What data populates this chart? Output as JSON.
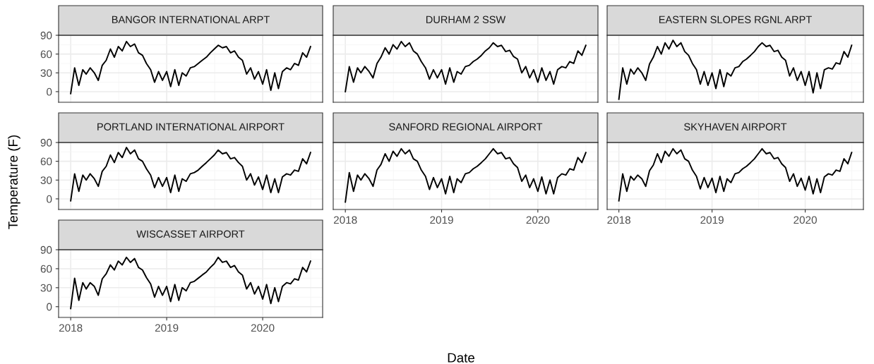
{
  "chart_data": [
    {
      "type": "line",
      "title": "BANGOR INTERNATIONAL ARPT",
      "tick_labels": "y",
      "grid": true,
      "xlim": [
        "2017-11-16",
        "2020-08-16"
      ],
      "ylim": [
        -17,
        90
      ],
      "xticks": [
        {
          "value": "2018",
          "label": null
        },
        {
          "value": "2019",
          "label": null
        },
        {
          "value": "2020",
          "label": null
        }
      ],
      "yticks": [
        0,
        30,
        60,
        90
      ],
      "x": [
        "2018-01-01",
        "2018-01-16",
        "2018-02-01",
        "2018-02-16",
        "2018-03-01",
        "2018-03-16",
        "2018-04-01",
        "2018-04-16",
        "2018-05-01",
        "2018-05-16",
        "2018-06-01",
        "2018-06-16",
        "2018-07-01",
        "2018-07-16",
        "2018-08-01",
        "2018-08-16",
        "2018-09-01",
        "2018-09-16",
        "2018-10-01",
        "2018-10-16",
        "2018-11-01",
        "2018-11-16",
        "2018-12-01",
        "2018-12-16",
        "2019-01-01",
        "2019-01-16",
        "2019-02-01",
        "2019-02-16",
        "2019-03-01",
        "2019-03-16",
        "2019-04-01",
        "2019-04-16",
        "2019-05-01",
        "2019-05-16",
        "2019-06-01",
        "2019-06-16",
        "2019-07-01",
        "2019-07-16",
        "2019-08-01",
        "2019-08-16",
        "2019-09-01",
        "2019-09-16",
        "2019-10-01",
        "2019-10-16",
        "2019-11-01",
        "2019-11-16",
        "2019-12-01",
        "2019-12-16",
        "2020-01-01",
        "2020-01-16",
        "2020-02-01",
        "2020-02-16",
        "2020-03-01",
        "2020-03-16",
        "2020-04-01",
        "2020-04-16",
        "2020-05-01",
        "2020-05-16",
        "2020-06-01",
        "2020-06-16",
        "2020-07-01"
      ],
      "series": [
        {
          "color": "#000000",
          "values": [
            -3,
            38,
            10,
            35,
            28,
            38,
            30,
            18,
            42,
            50,
            68,
            55,
            72,
            65,
            80,
            72,
            76,
            62,
            58,
            45,
            35,
            15,
            32,
            18,
            32,
            8,
            35,
            10,
            30,
            25,
            38,
            40,
            45,
            50,
            55,
            62,
            68,
            74,
            70,
            72,
            62,
            65,
            55,
            50,
            28,
            38,
            20,
            32,
            12,
            35,
            2,
            30,
            5,
            32,
            38,
            35,
            45,
            42,
            62,
            55,
            72
          ]
        }
      ]
    },
    {
      "type": "line",
      "title": "DURHAM 2 SSW",
      "tick_labels": false,
      "grid": true,
      "xlim": [
        "2017-11-16",
        "2020-08-16"
      ],
      "ylim": [
        -17,
        90
      ],
      "xticks": [
        {
          "value": "2018",
          "label": null
        },
        {
          "value": "2019",
          "label": null
        },
        {
          "value": "2020",
          "label": null
        }
      ],
      "yticks": [
        0,
        30,
        60,
        90
      ],
      "x": [
        "2018-01-01",
        "2018-01-16",
        "2018-02-01",
        "2018-02-16",
        "2018-03-01",
        "2018-03-16",
        "2018-04-01",
        "2018-04-16",
        "2018-05-01",
        "2018-05-16",
        "2018-06-01",
        "2018-06-16",
        "2018-07-01",
        "2018-07-16",
        "2018-08-01",
        "2018-08-16",
        "2018-09-01",
        "2018-09-16",
        "2018-10-01",
        "2018-10-16",
        "2018-11-01",
        "2018-11-16",
        "2018-12-01",
        "2018-12-16",
        "2019-01-01",
        "2019-01-16",
        "2019-02-01",
        "2019-02-16",
        "2019-03-01",
        "2019-03-16",
        "2019-04-01",
        "2019-04-16",
        "2019-05-01",
        "2019-05-16",
        "2019-06-01",
        "2019-06-16",
        "2019-07-01",
        "2019-07-16",
        "2019-08-01",
        "2019-08-16",
        "2019-09-01",
        "2019-09-16",
        "2019-10-01",
        "2019-10-16",
        "2019-11-01",
        "2019-11-16",
        "2019-12-01",
        "2019-12-16",
        "2020-01-01",
        "2020-01-16",
        "2020-02-01",
        "2020-02-16",
        "2020-03-01",
        "2020-03-16",
        "2020-04-01",
        "2020-04-16",
        "2020-05-01",
        "2020-05-16",
        "2020-06-01",
        "2020-06-16",
        "2020-07-01"
      ],
      "series": [
        {
          "color": "#000000",
          "values": [
            0,
            40,
            15,
            38,
            30,
            40,
            32,
            22,
            45,
            55,
            70,
            60,
            75,
            68,
            80,
            72,
            78,
            65,
            60,
            48,
            38,
            20,
            35,
            22,
            35,
            12,
            38,
            15,
            32,
            28,
            40,
            42,
            48,
            52,
            58,
            65,
            70,
            78,
            72,
            74,
            64,
            66,
            56,
            52,
            30,
            40,
            22,
            35,
            15,
            38,
            18,
            32,
            12,
            35,
            40,
            38,
            48,
            45,
            65,
            58,
            74
          ]
        }
      ]
    },
    {
      "type": "line",
      "title": "EASTERN SLOPES RGNL ARPT",
      "tick_labels": false,
      "grid": true,
      "xlim": [
        "2017-11-16",
        "2020-08-16"
      ],
      "ylim": [
        -17,
        90
      ],
      "xticks": [
        {
          "value": "2018",
          "label": null
        },
        {
          "value": "2019",
          "label": null
        },
        {
          "value": "2020",
          "label": null
        }
      ],
      "yticks": [
        0,
        30,
        60,
        90
      ],
      "x": [
        "2018-01-01",
        "2018-01-16",
        "2018-02-01",
        "2018-02-16",
        "2018-03-01",
        "2018-03-16",
        "2018-04-01",
        "2018-04-16",
        "2018-05-01",
        "2018-05-16",
        "2018-06-01",
        "2018-06-16",
        "2018-07-01",
        "2018-07-16",
        "2018-08-01",
        "2018-08-16",
        "2018-09-01",
        "2018-09-16",
        "2018-10-01",
        "2018-10-16",
        "2018-11-01",
        "2018-11-16",
        "2018-12-01",
        "2018-12-16",
        "2019-01-01",
        "2019-01-16",
        "2019-02-01",
        "2019-02-16",
        "2019-03-01",
        "2019-03-16",
        "2019-04-01",
        "2019-04-16",
        "2019-05-01",
        "2019-05-16",
        "2019-06-01",
        "2019-06-16",
        "2019-07-01",
        "2019-07-16",
        "2019-08-01",
        "2019-08-16",
        "2019-09-01",
        "2019-09-16",
        "2019-10-01",
        "2019-10-16",
        "2019-11-01",
        "2019-11-16",
        "2019-12-01",
        "2019-12-16",
        "2020-01-01",
        "2020-01-16",
        "2020-02-01",
        "2020-02-16",
        "2020-03-01",
        "2020-03-16",
        "2020-04-01",
        "2020-04-16",
        "2020-05-01",
        "2020-05-16",
        "2020-06-01",
        "2020-06-16",
        "2020-07-01"
      ],
      "series": [
        {
          "color": "#000000",
          "values": [
            -12,
            38,
            12,
            36,
            28,
            38,
            30,
            18,
            44,
            55,
            72,
            60,
            78,
            68,
            82,
            72,
            78,
            64,
            58,
            45,
            35,
            12,
            32,
            10,
            30,
            5,
            35,
            8,
            30,
            25,
            38,
            40,
            48,
            52,
            58,
            64,
            72,
            78,
            72,
            74,
            64,
            66,
            55,
            50,
            25,
            38,
            18,
            32,
            10,
            32,
            -2,
            30,
            5,
            35,
            38,
            36,
            46,
            44,
            64,
            55,
            74
          ]
        }
      ]
    },
    {
      "type": "line",
      "title": "PORTLAND INTERNATIONAL AIRPORT",
      "ylabel": "Temperature (F)",
      "tick_labels": "y",
      "grid": true,
      "xlim": [
        "2017-11-16",
        "2020-08-16"
      ],
      "ylim": [
        -17,
        90
      ],
      "xticks": [
        {
          "value": "2018",
          "label": null
        },
        {
          "value": "2019",
          "label": null
        },
        {
          "value": "2020",
          "label": null
        }
      ],
      "yticks": [
        0,
        30,
        60,
        90
      ],
      "x": [
        "2018-01-01",
        "2018-01-16",
        "2018-02-01",
        "2018-02-16",
        "2018-03-01",
        "2018-03-16",
        "2018-04-01",
        "2018-04-16",
        "2018-05-01",
        "2018-05-16",
        "2018-06-01",
        "2018-06-16",
        "2018-07-01",
        "2018-07-16",
        "2018-08-01",
        "2018-08-16",
        "2018-09-01",
        "2018-09-16",
        "2018-10-01",
        "2018-10-16",
        "2018-11-01",
        "2018-11-16",
        "2018-12-01",
        "2018-12-16",
        "2019-01-01",
        "2019-01-16",
        "2019-02-01",
        "2019-02-16",
        "2019-03-01",
        "2019-03-16",
        "2019-04-01",
        "2019-04-16",
        "2019-05-01",
        "2019-05-16",
        "2019-06-01",
        "2019-06-16",
        "2019-07-01",
        "2019-07-16",
        "2019-08-01",
        "2019-08-16",
        "2019-09-01",
        "2019-09-16",
        "2019-10-01",
        "2019-10-16",
        "2019-11-01",
        "2019-11-16",
        "2019-12-01",
        "2019-12-16",
        "2020-01-01",
        "2020-01-16",
        "2020-02-01",
        "2020-02-16",
        "2020-03-01",
        "2020-03-16",
        "2020-04-01",
        "2020-04-16",
        "2020-05-01",
        "2020-05-16",
        "2020-06-01",
        "2020-06-16",
        "2020-07-01"
      ],
      "series": [
        {
          "color": "#000000",
          "values": [
            -3,
            40,
            12,
            38,
            30,
            40,
            32,
            20,
            44,
            52,
            70,
            58,
            74,
            66,
            82,
            72,
            78,
            64,
            60,
            48,
            38,
            18,
            34,
            20,
            34,
            10,
            38,
            12,
            32,
            28,
            40,
            42,
            46,
            52,
            58,
            64,
            70,
            78,
            72,
            74,
            64,
            66,
            58,
            52,
            30,
            40,
            22,
            35,
            15,
            38,
            10,
            32,
            10,
            35,
            40,
            38,
            46,
            44,
            64,
            56,
            74
          ]
        }
      ]
    },
    {
      "type": "line",
      "title": "SANFORD REGIONAL AIRPORT",
      "xlabel": "Date",
      "tick_labels": "x",
      "grid": true,
      "xlim": [
        "2017-11-16",
        "2020-08-16"
      ],
      "ylim": [
        -17,
        90
      ],
      "xticks": [
        {
          "value": "2018",
          "label": "2018"
        },
        {
          "value": "2019",
          "label": "2019"
        },
        {
          "value": "2020",
          "label": "2020"
        }
      ],
      "yticks": [
        0,
        30,
        60,
        90
      ],
      "x": [
        "2018-01-01",
        "2018-01-16",
        "2018-02-01",
        "2018-02-16",
        "2018-03-01",
        "2018-03-16",
        "2018-04-01",
        "2018-04-16",
        "2018-05-01",
        "2018-05-16",
        "2018-06-01",
        "2018-06-16",
        "2018-07-01",
        "2018-07-16",
        "2018-08-01",
        "2018-08-16",
        "2018-09-01",
        "2018-09-16",
        "2018-10-01",
        "2018-10-16",
        "2018-11-01",
        "2018-11-16",
        "2018-12-01",
        "2018-12-16",
        "2019-01-01",
        "2019-01-16",
        "2019-02-01",
        "2019-02-16",
        "2019-03-01",
        "2019-03-16",
        "2019-04-01",
        "2019-04-16",
        "2019-05-01",
        "2019-05-16",
        "2019-06-01",
        "2019-06-16",
        "2019-07-01",
        "2019-07-16",
        "2019-08-01",
        "2019-08-16",
        "2019-09-01",
        "2019-09-16",
        "2019-10-01",
        "2019-10-16",
        "2019-11-01",
        "2019-11-16",
        "2019-12-01",
        "2019-12-16",
        "2020-01-01",
        "2020-01-16",
        "2020-02-01",
        "2020-02-16",
        "2020-03-01",
        "2020-03-16",
        "2020-04-01",
        "2020-04-16",
        "2020-05-01",
        "2020-05-16",
        "2020-06-01",
        "2020-06-16",
        "2020-07-01"
      ],
      "series": [
        {
          "color": "#000000",
          "values": [
            -5,
            42,
            12,
            38,
            30,
            40,
            32,
            20,
            46,
            55,
            72,
            60,
            76,
            68,
            80,
            72,
            78,
            64,
            60,
            46,
            36,
            15,
            34,
            18,
            32,
            8,
            36,
            10,
            32,
            26,
            40,
            42,
            48,
            52,
            58,
            64,
            72,
            80,
            72,
            74,
            64,
            66,
            56,
            50,
            28,
            38,
            18,
            32,
            12,
            35,
            8,
            30,
            8,
            34,
            40,
            38,
            48,
            46,
            66,
            58,
            74
          ]
        }
      ]
    },
    {
      "type": "line",
      "title": "SKYHAVEN AIRPORT",
      "tick_labels": "x",
      "grid": true,
      "xlim": [
        "2017-11-16",
        "2020-08-16"
      ],
      "ylim": [
        -17,
        90
      ],
      "xticks": [
        {
          "value": "2018",
          "label": "2018"
        },
        {
          "value": "2019",
          "label": "2019"
        },
        {
          "value": "2020",
          "label": "2020"
        }
      ],
      "yticks": [
        0,
        30,
        60,
        90
      ],
      "x": [
        "2018-01-01",
        "2018-01-16",
        "2018-02-01",
        "2018-02-16",
        "2018-03-01",
        "2018-03-16",
        "2018-04-01",
        "2018-04-16",
        "2018-05-01",
        "2018-05-16",
        "2018-06-01",
        "2018-06-16",
        "2018-07-01",
        "2018-07-16",
        "2018-08-01",
        "2018-08-16",
        "2018-09-01",
        "2018-09-16",
        "2018-10-01",
        "2018-10-16",
        "2018-11-01",
        "2018-11-16",
        "2018-12-01",
        "2018-12-16",
        "2019-01-01",
        "2019-01-16",
        "2019-02-01",
        "2019-02-16",
        "2019-03-01",
        "2019-03-16",
        "2019-04-01",
        "2019-04-16",
        "2019-05-01",
        "2019-05-16",
        "2019-06-01",
        "2019-06-16",
        "2019-07-01",
        "2019-07-16",
        "2019-08-01",
        "2019-08-16",
        "2019-09-01",
        "2019-09-16",
        "2019-10-01",
        "2019-10-16",
        "2019-11-01",
        "2019-11-16",
        "2019-12-01",
        "2019-12-16",
        "2020-01-01",
        "2020-01-16",
        "2020-02-01",
        "2020-02-16",
        "2020-03-01",
        "2020-03-16",
        "2020-04-01",
        "2020-04-16",
        "2020-05-01",
        "2020-05-16",
        "2020-06-01",
        "2020-06-16",
        "2020-07-01"
      ],
      "series": [
        {
          "color": "#000000",
          "values": [
            -3,
            40,
            12,
            36,
            30,
            38,
            32,
            20,
            45,
            54,
            72,
            58,
            76,
            68,
            80,
            72,
            78,
            64,
            60,
            46,
            36,
            16,
            34,
            18,
            33,
            10,
            36,
            12,
            32,
            26,
            40,
            42,
            48,
            52,
            58,
            64,
            72,
            80,
            72,
            74,
            64,
            66,
            56,
            50,
            28,
            40,
            20,
            33,
            14,
            36,
            8,
            32,
            10,
            35,
            40,
            38,
            46,
            44,
            64,
            56,
            74
          ]
        }
      ]
    },
    {
      "type": "line",
      "title": "WISCASSET AIRPORT",
      "grid": true,
      "xlim": [
        "2017-11-16",
        "2020-08-16"
      ],
      "ylim": [
        -17,
        90
      ],
      "xticks": [
        {
          "value": "2018",
          "label": "2018"
        },
        {
          "value": "2019",
          "label": "2019"
        },
        {
          "value": "2020",
          "label": "2020"
        }
      ],
      "yticks": [
        0,
        30,
        60,
        90
      ],
      "x": [
        "2018-01-01",
        "2018-01-16",
        "2018-02-01",
        "2018-02-16",
        "2018-03-01",
        "2018-03-16",
        "2018-04-01",
        "2018-04-16",
        "2018-05-01",
        "2018-05-16",
        "2018-06-01",
        "2018-06-16",
        "2018-07-01",
        "2018-07-16",
        "2018-08-01",
        "2018-08-16",
        "2018-09-01",
        "2018-09-16",
        "2018-10-01",
        "2018-10-16",
        "2018-11-01",
        "2018-11-16",
        "2018-12-01",
        "2018-12-16",
        "2019-01-01",
        "2019-01-16",
        "2019-02-01",
        "2019-02-16",
        "2019-03-01",
        "2019-03-16",
        "2019-04-01",
        "2019-04-16",
        "2019-05-01",
        "2019-05-16",
        "2019-06-01",
        "2019-06-16",
        "2019-07-01",
        "2019-07-16",
        "2019-08-01",
        "2019-08-16",
        "2019-09-01",
        "2019-09-16",
        "2019-10-01",
        "2019-10-16",
        "2019-11-01",
        "2019-11-16",
        "2019-12-01",
        "2019-12-16",
        "2020-01-01",
        "2020-01-16",
        "2020-02-01",
        "2020-02-16",
        "2020-03-01",
        "2020-03-16",
        "2020-04-01",
        "2020-04-16",
        "2020-05-01",
        "2020-05-16",
        "2020-06-01",
        "2020-06-16",
        "2020-07-01"
      ],
      "series": [
        {
          "color": "#000000",
          "values": [
            -3,
            45,
            10,
            38,
            28,
            38,
            32,
            18,
            44,
            52,
            66,
            58,
            72,
            66,
            78,
            70,
            76,
            62,
            58,
            46,
            36,
            15,
            32,
            18,
            32,
            8,
            35,
            10,
            30,
            25,
            38,
            40,
            45,
            50,
            55,
            62,
            68,
            78,
            70,
            72,
            62,
            65,
            55,
            50,
            28,
            38,
            20,
            32,
            12,
            35,
            5,
            30,
            8,
            32,
            38,
            36,
            44,
            42,
            62,
            55,
            72
          ]
        }
      ]
    }
  ]
}
